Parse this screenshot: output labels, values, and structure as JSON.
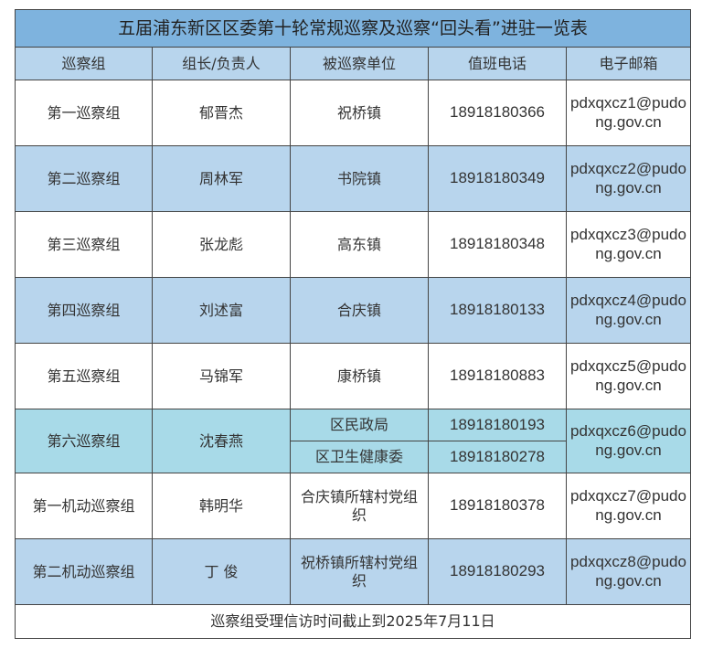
{
  "title": "五届浦东新区区委第十轮常规巡察及巡察“回头看”进驻一览表",
  "headers": [
    "巡察组",
    "组长/负责人",
    "被巡察单位",
    "值班电话",
    "电子邮箱"
  ],
  "rows": [
    {
      "group": "第一巡察组",
      "leader": "郁晋杰",
      "unit": "祝桥镇",
      "phone": "18918180366",
      "email": "pdxqxcz1@pudong.gov.cn"
    },
    {
      "group": "第二巡察组",
      "leader": "周林军",
      "unit": "书院镇",
      "phone": "18918180349",
      "email": "pdxqxcz2@pudong.gov.cn"
    },
    {
      "group": "第三巡察组",
      "leader": "张龙彪",
      "unit": "高东镇",
      "phone": "18918180348",
      "email": "pdxqxcz3@pudong.gov.cn"
    },
    {
      "group": "第四巡察组",
      "leader": "刘述富",
      "unit": "合庆镇",
      "phone": "18918180133",
      "email": "pdxqxcz4@pudong.gov.cn"
    },
    {
      "group": "第五巡察组",
      "leader": "马锦军",
      "unit": "康桥镇",
      "phone": "18918180883",
      "email": "pdxqxcz5@pudong.gov.cn"
    },
    {
      "group": "第六巡察组",
      "leader": "沈春燕",
      "unit": "区民政局",
      "phone": "18918180193",
      "unit2": "区卫生健康委",
      "phone2": "18918180278",
      "email": "pdxqxcz6@pudong.gov.cn"
    },
    {
      "group": "第一机动巡察组",
      "leader": "韩明华",
      "unit": "合庆镇所辖村党组织",
      "phone": "18918180378",
      "email": "pdxqxcz7@pudong.gov.cn"
    },
    {
      "group": "第二机动巡察组",
      "leader": "丁 俊",
      "unit": "祝桥镇所辖村党组织",
      "phone": "18918180293",
      "email": "pdxqxcz8@pudong.gov.cn"
    }
  ],
  "footer": "巡察组受理信访时间截止到2025年7月11日",
  "colors": {
    "title_bg": "#7eb3de",
    "header_bg": "#b8d5ed",
    "row_alt": "#b8d5ed",
    "row_six": "#a8dae8"
  }
}
